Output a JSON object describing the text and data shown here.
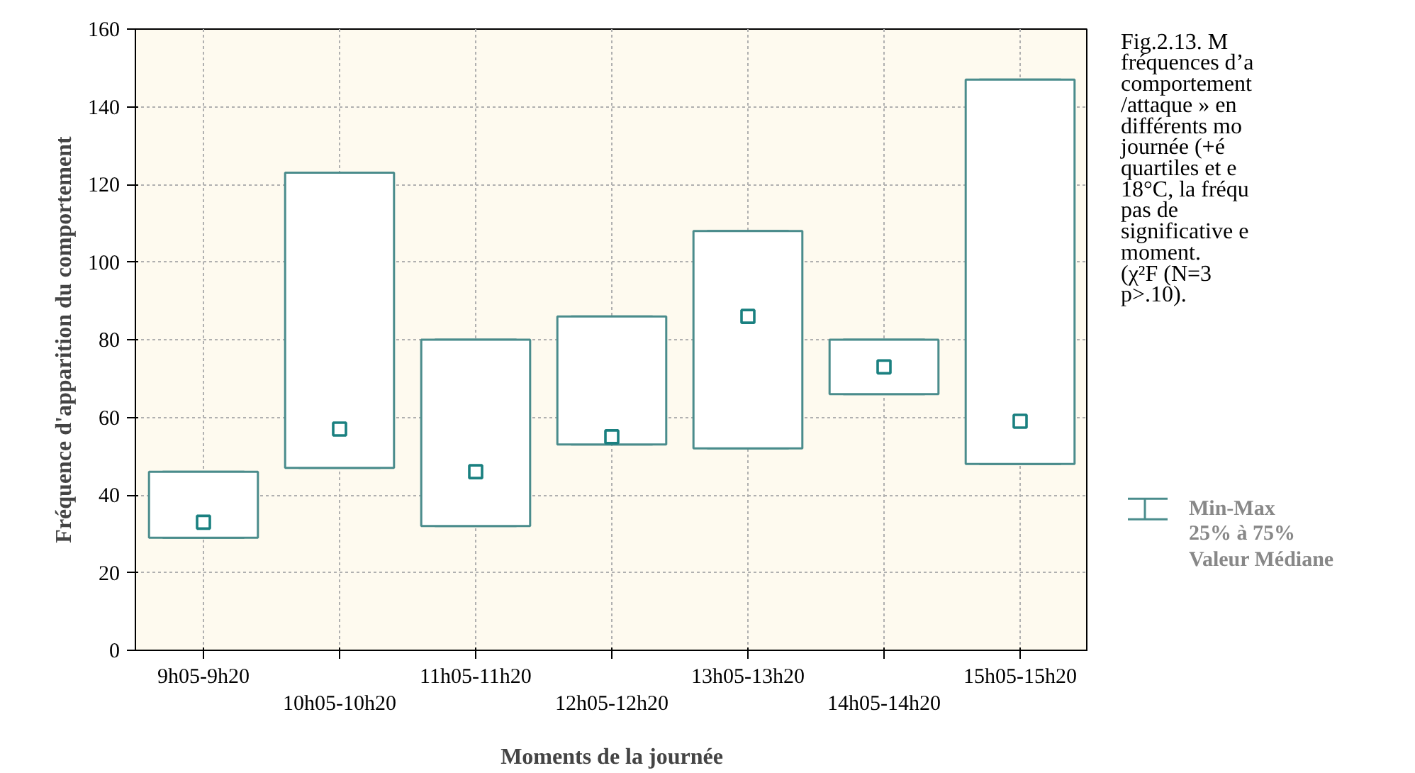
{
  "chart_data": {
    "type": "box",
    "categories": [
      "9h05-9h20",
      "10h05-10h20",
      "11h05-11h20",
      "12h05-12h20",
      "13h05-13h20",
      "14h05-14h20",
      "15h05-15h20"
    ],
    "boxes": [
      {
        "low": 29,
        "q1": 29,
        "median": 33,
        "q3": 46,
        "high": 46
      },
      {
        "low": 47,
        "q1": 47,
        "median": 57,
        "q3": 123,
        "high": 123
      },
      {
        "low": 32,
        "q1": 32,
        "median": 46,
        "q3": 80,
        "high": 80
      },
      {
        "low": 53,
        "q1": 53,
        "median": 55,
        "q3": 86,
        "high": 86
      },
      {
        "low": 52,
        "q1": 52,
        "median": 86,
        "q3": 108,
        "high": 108
      },
      {
        "low": 66,
        "q1": 66,
        "median": 73,
        "q3": 80,
        "high": 80
      },
      {
        "low": 48,
        "q1": 48,
        "median": 59,
        "q3": 147,
        "high": 147
      }
    ],
    "color": "#4a8c8c",
    "xlabel": "Moments de la journée",
    "ylabel": "Fréquence d'apparition du comportement",
    "ylim": [
      0,
      160
    ],
    "yticks": [
      0,
      20,
      40,
      60,
      80,
      100,
      120,
      140,
      160
    ],
    "grid": true,
    "marker": "square",
    "annotations": [
      "Fig.2.13.   M",
      "fréquences d’a",
      "comportement",
      "/attaque » en",
      "différents   mo",
      "journée   (+é",
      "quartiles  et  e",
      "18°C, la fréqu",
      "pas        de",
      "significative e",
      "moment.",
      "(χ²F       (N=3",
      "p>.10).",
      "Min-Max",
      "25% à 75%",
      "Valeur Médiane"
    ]
  }
}
